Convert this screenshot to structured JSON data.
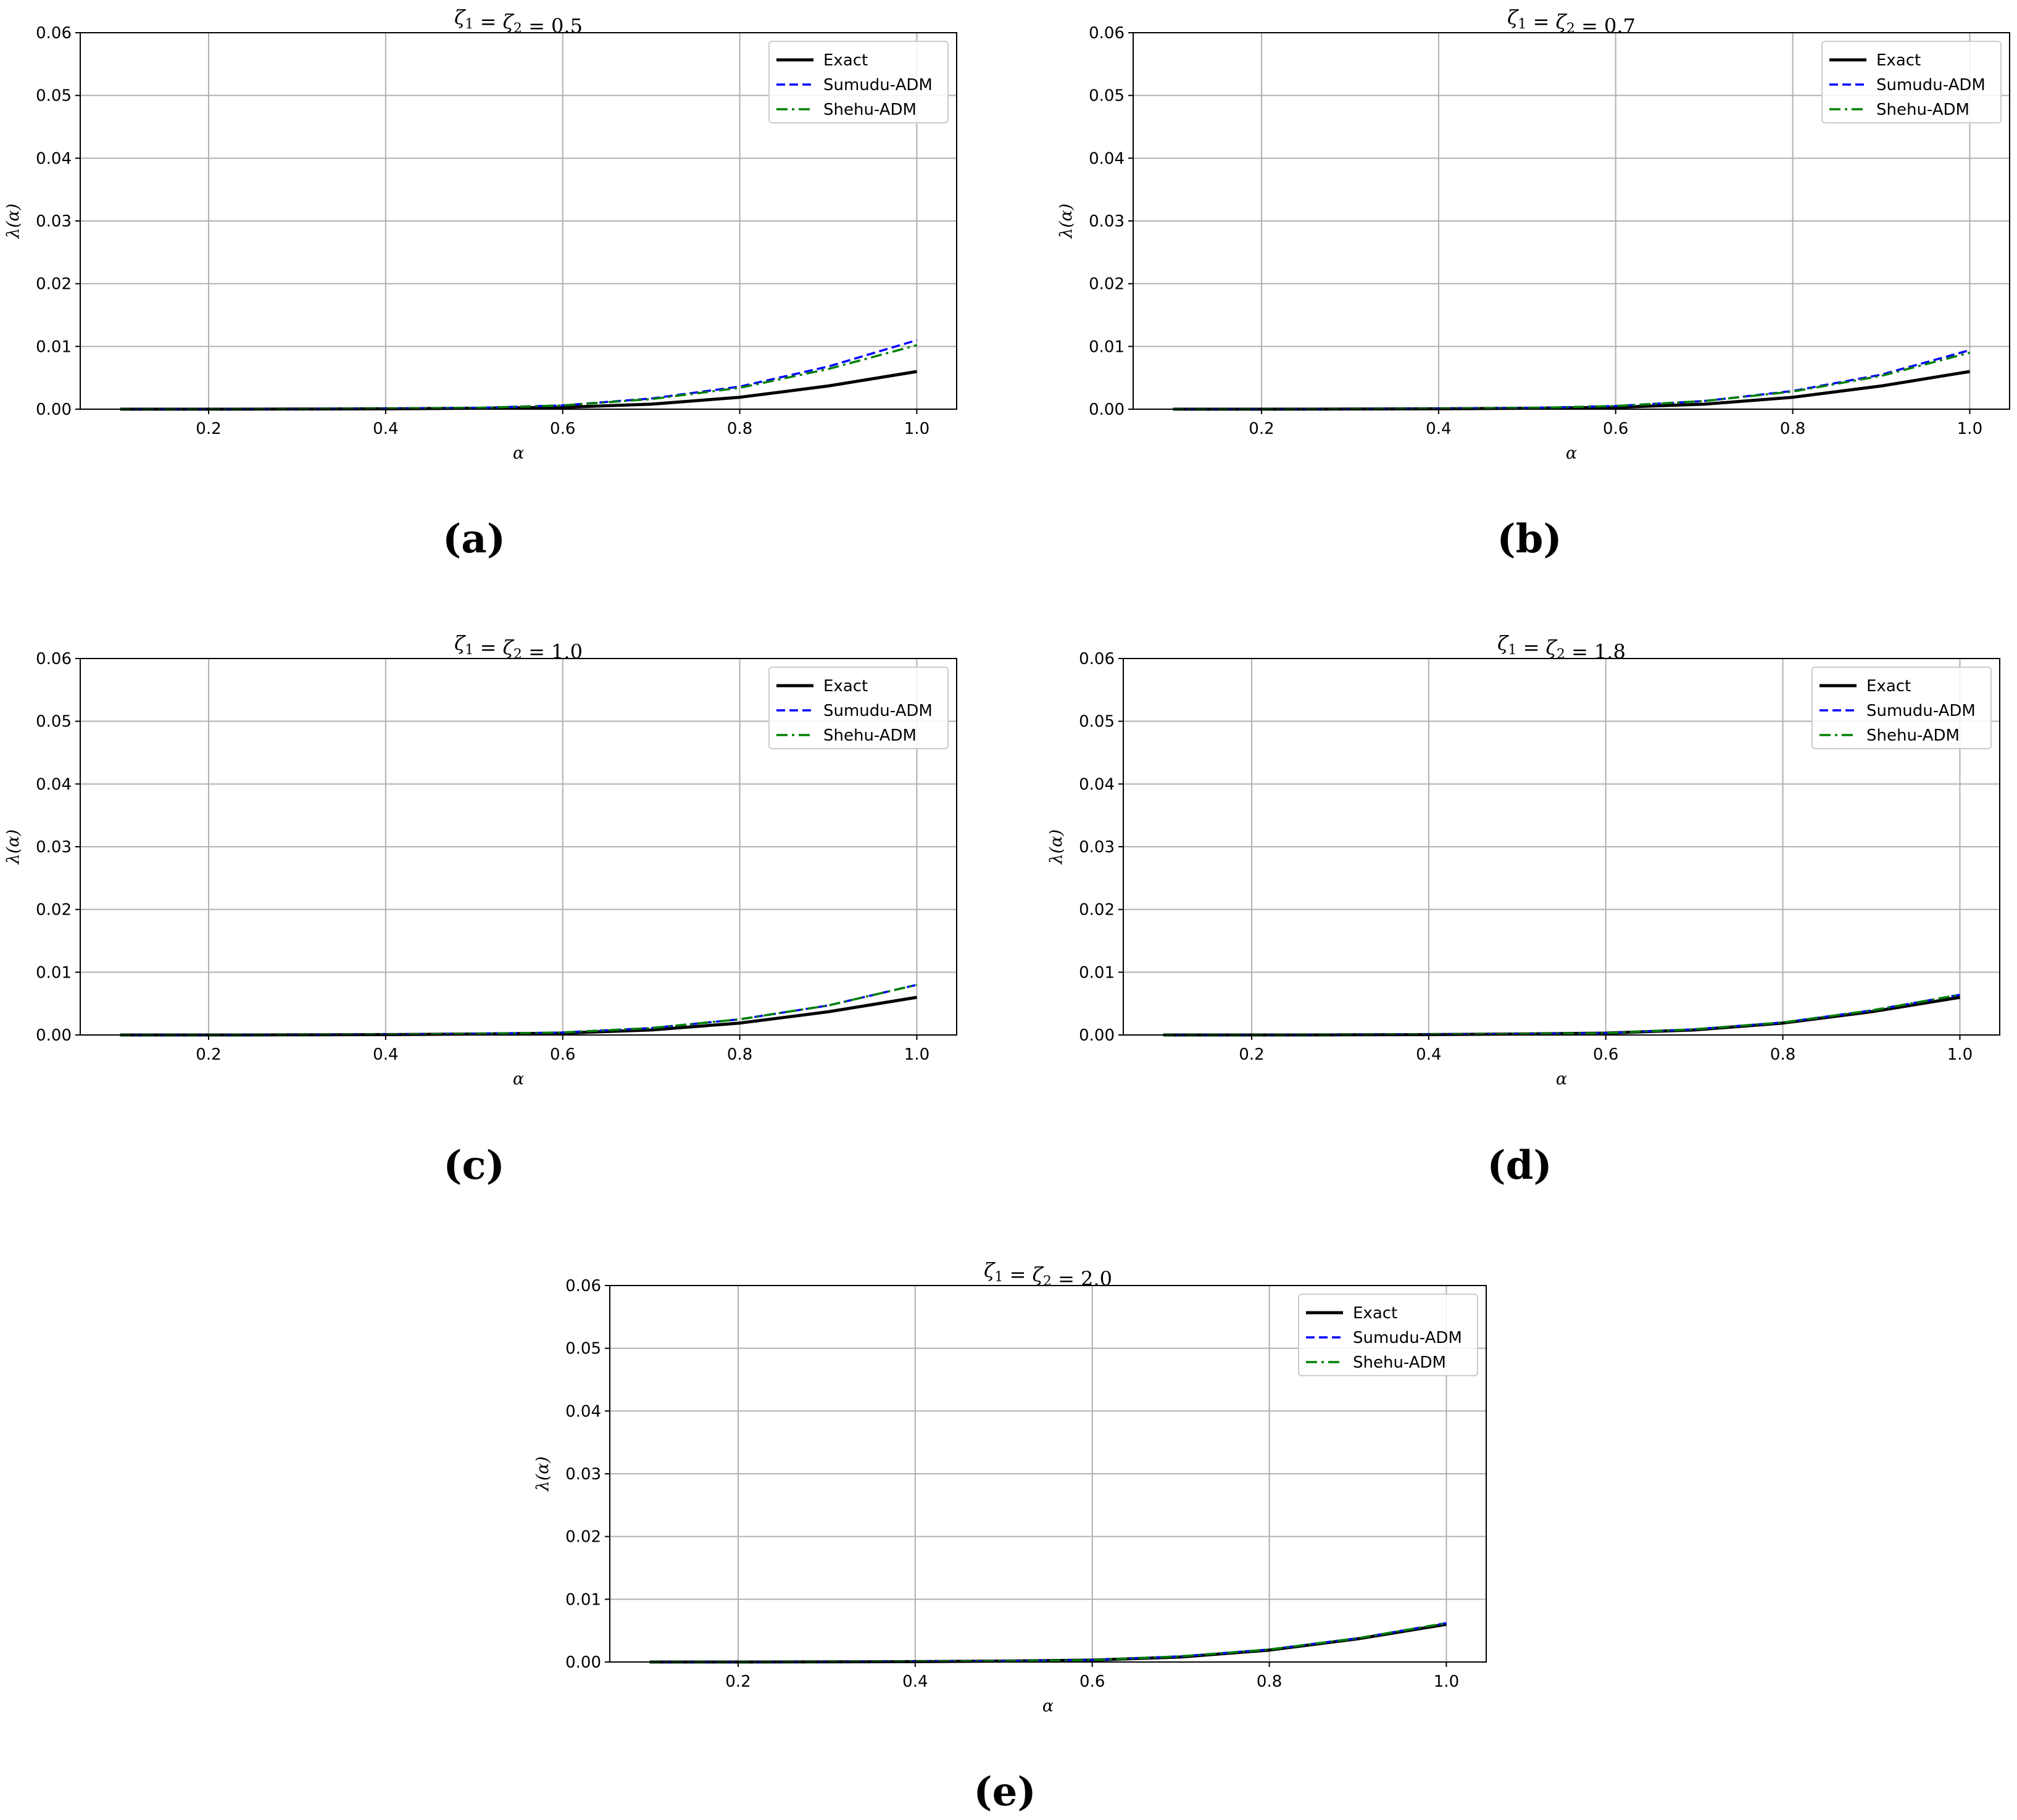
{
  "legend": {
    "exact": "Exact",
    "sumudu": "Sumudu-ADM",
    "shehu": "Shehu-ADM"
  },
  "colors": {
    "exact": "#000000",
    "sumudu": "#0000ff",
    "shehu": "#008000",
    "grid": "#b0b0b0"
  },
  "chart_data": [
    {
      "type": "line",
      "caption": "(a)",
      "title": "ζ1 = ζ2 = 0.5",
      "xlabel": "α",
      "ylabel": "λ(α)",
      "xticks": [
        "0.2",
        "0.4",
        "0.6",
        "0.8",
        "1.0"
      ],
      "yticks": [
        "0.00",
        "0.01",
        "0.02",
        "0.03",
        "0.04",
        "0.05",
        "0.06"
      ],
      "xlim": [
        0.055,
        1.045
      ],
      "ylim": [
        0,
        0.06
      ],
      "grid": true,
      "legend_position": "top-right",
      "x": [
        0.1,
        0.2,
        0.3,
        0.4,
        0.5,
        0.6,
        0.7,
        0.8,
        0.9,
        1.0
      ],
      "series": [
        {
          "name": "Exact",
          "style": "solid",
          "values": [
            0.0,
            0.0,
            2e-05,
            6e-05,
            0.00015,
            0.0003,
            0.0008,
            0.0019,
            0.0037,
            0.006
          ]
        },
        {
          "name": "Sumudu-ADM",
          "style": "dashed",
          "values": [
            0.0,
            0.0,
            2e-05,
            8e-05,
            0.0002,
            0.0006,
            0.0017,
            0.0036,
            0.0068,
            0.011
          ]
        },
        {
          "name": "Shehu-ADM",
          "style": "dashdot",
          "values": [
            0.0,
            0.0,
            2e-05,
            8e-05,
            0.0002,
            0.0006,
            0.0016,
            0.0034,
            0.0064,
            0.0102
          ]
        }
      ]
    },
    {
      "type": "line",
      "caption": "(b)",
      "title": "ζ1 = ζ2 = 0.7",
      "xlabel": "α",
      "ylabel": "λ(α)",
      "xticks": [
        "0.2",
        "0.4",
        "0.6",
        "0.8",
        "1.0"
      ],
      "yticks": [
        "0.00",
        "0.01",
        "0.02",
        "0.03",
        "0.04",
        "0.05",
        "0.06"
      ],
      "xlim": [
        0.055,
        1.045
      ],
      "ylim": [
        0,
        0.06
      ],
      "grid": true,
      "legend_position": "top-right",
      "x": [
        0.1,
        0.2,
        0.3,
        0.4,
        0.5,
        0.6,
        0.7,
        0.8,
        0.9,
        1.0
      ],
      "series": [
        {
          "name": "Exact",
          "style": "solid",
          "values": [
            0.0,
            0.0,
            2e-05,
            6e-05,
            0.00015,
            0.0003,
            0.0008,
            0.0019,
            0.0037,
            0.006
          ]
        },
        {
          "name": "Sumudu-ADM",
          "style": "dashed",
          "values": [
            0.0,
            0.0,
            2e-05,
            7e-05,
            0.00018,
            0.0005,
            0.0013,
            0.0029,
            0.0055,
            0.0094
          ]
        },
        {
          "name": "Shehu-ADM",
          "style": "dashdot",
          "values": [
            0.0,
            0.0,
            2e-05,
            7e-05,
            0.00018,
            0.0005,
            0.0013,
            0.0028,
            0.0053,
            0.009
          ]
        }
      ]
    },
    {
      "type": "line",
      "caption": "(c)",
      "title": "ζ1 = ζ2 = 1.0",
      "xlabel": "α",
      "ylabel": "λ(α)",
      "xticks": [
        "0.2",
        "0.4",
        "0.6",
        "0.8",
        "1.0"
      ],
      "yticks": [
        "0.00",
        "0.01",
        "0.02",
        "0.03",
        "0.04",
        "0.05",
        "0.06"
      ],
      "xlim": [
        0.055,
        1.045
      ],
      "ylim": [
        0,
        0.06
      ],
      "grid": true,
      "legend_position": "top-right",
      "x": [
        0.1,
        0.2,
        0.3,
        0.4,
        0.5,
        0.6,
        0.7,
        0.8,
        0.9,
        1.0
      ],
      "series": [
        {
          "name": "Exact",
          "style": "solid",
          "values": [
            0.0,
            0.0,
            2e-05,
            6e-05,
            0.00015,
            0.0003,
            0.0008,
            0.0019,
            0.0037,
            0.006
          ]
        },
        {
          "name": "Sumudu-ADM",
          "style": "dashed",
          "values": [
            0.0,
            0.0,
            2e-05,
            6e-05,
            0.00016,
            0.0004,
            0.0011,
            0.0025,
            0.0047,
            0.008
          ]
        },
        {
          "name": "Shehu-ADM",
          "style": "dashdot",
          "values": [
            0.0,
            0.0,
            2e-05,
            6e-05,
            0.00016,
            0.0004,
            0.0011,
            0.0025,
            0.0047,
            0.008
          ]
        }
      ]
    },
    {
      "type": "line",
      "caption": "(d)",
      "title": "ζ1 = ζ2 = 1.8",
      "xlabel": "α",
      "ylabel": "λ(α)",
      "xticks": [
        "0.2",
        "0.4",
        "0.6",
        "0.8",
        "1.0"
      ],
      "yticks": [
        "0.00",
        "0.01",
        "0.02",
        "0.03",
        "0.04",
        "0.05",
        "0.06"
      ],
      "xlim": [
        0.055,
        1.045
      ],
      "ylim": [
        0,
        0.06
      ],
      "grid": true,
      "legend_position": "top-right",
      "x": [
        0.1,
        0.2,
        0.3,
        0.4,
        0.5,
        0.6,
        0.7,
        0.8,
        0.9,
        1.0
      ],
      "series": [
        {
          "name": "Exact",
          "style": "solid",
          "values": [
            0.0,
            0.0,
            2e-05,
            6e-05,
            0.00015,
            0.0003,
            0.0008,
            0.0019,
            0.0037,
            0.006
          ]
        },
        {
          "name": "Sumudu-ADM",
          "style": "dashed",
          "values": [
            0.0,
            0.0,
            2e-05,
            6e-05,
            0.00015,
            0.0003,
            0.0009,
            0.002,
            0.0039,
            0.0064
          ]
        },
        {
          "name": "Shehu-ADM",
          "style": "dashdot",
          "values": [
            0.0,
            0.0,
            2e-05,
            6e-05,
            0.00015,
            0.0003,
            0.0009,
            0.002,
            0.0039,
            0.0064
          ]
        }
      ]
    },
    {
      "type": "line",
      "caption": "(e)",
      "title": "ζ1 = ζ2 = 2.0",
      "xlabel": "α",
      "ylabel": "λ(α)",
      "xticks": [
        "0.2",
        "0.4",
        "0.6",
        "0.8",
        "1.0"
      ],
      "yticks": [
        "0.00",
        "0.01",
        "0.02",
        "0.03",
        "0.04",
        "0.05",
        "0.06"
      ],
      "xlim": [
        0.055,
        1.045
      ],
      "ylim": [
        0,
        0.06
      ],
      "grid": true,
      "legend_position": "top-right",
      "x": [
        0.1,
        0.2,
        0.3,
        0.4,
        0.5,
        0.6,
        0.7,
        0.8,
        0.9,
        1.0
      ],
      "series": [
        {
          "name": "Exact",
          "style": "solid",
          "values": [
            0.0,
            0.0,
            2e-05,
            6e-05,
            0.00015,
            0.0003,
            0.0008,
            0.0019,
            0.0037,
            0.006
          ]
        },
        {
          "name": "Sumudu-ADM",
          "style": "dashed",
          "values": [
            0.0,
            0.0,
            2e-05,
            6e-05,
            0.00015,
            0.0003,
            0.0009,
            0.002,
            0.0038,
            0.0062
          ]
        },
        {
          "name": "Shehu-ADM",
          "style": "dashdot",
          "values": [
            0.0,
            0.0,
            2e-05,
            6e-05,
            0.00015,
            0.0003,
            0.0009,
            0.002,
            0.0038,
            0.0062
          ]
        }
      ]
    }
  ]
}
